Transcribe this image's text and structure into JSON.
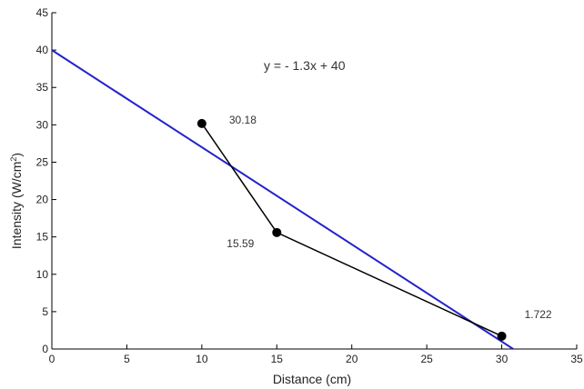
{
  "chart_data": {
    "type": "line",
    "xlabel": "Distance (cm)",
    "ylabel_main": "Intensity (W/cm",
    "ylabel_sup": "2",
    "ylabel_close": ")",
    "xlim": [
      0,
      35
    ],
    "ylim": [
      0,
      45
    ],
    "xticks": [
      0,
      5,
      10,
      15,
      20,
      25,
      30,
      35
    ],
    "yticks": [
      0,
      5,
      10,
      15,
      20,
      25,
      30,
      35,
      40,
      45
    ],
    "grid": false,
    "annotation": "y = - 1.3x + 40",
    "series": [
      {
        "x": [
          10,
          15,
          30
        ],
        "y": [
          30.18,
          15.59,
          1.722
        ],
        "labels": [
          "30.18",
          "15.59",
          "1.722"
        ],
        "color": "#000000",
        "marker": "circle"
      }
    ],
    "fit_line": {
      "slope": -1.3,
      "intercept": 40,
      "color": "#2222cc"
    }
  }
}
